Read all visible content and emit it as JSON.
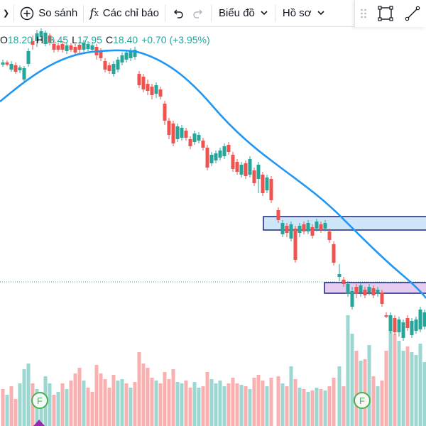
{
  "toolbar": {
    "compare_label": "So sánh",
    "indicators_label": "Các chỉ báo",
    "chart_type_label": "Biểu đồ",
    "profile_label": "Hồ sơ",
    "compare_icon": "plus-circle-icon",
    "indicators_icon": "fx-icon",
    "undo_icon": "undo-icon",
    "redo_icon": "redo-icon",
    "drag_icon": "drag-handle-icon",
    "rect_icon": "rectangle-tool-icon",
    "line_icon": "trendline-tool-icon"
  },
  "ohlc": {
    "o_key": "O",
    "o": "18.20",
    "h_key": "H",
    "h": "18.45",
    "l_key": "L",
    "l": "17.95",
    "c_key": "C",
    "c": "18.40",
    "change": "+0.70 (+3.95%)"
  },
  "markers": {
    "event_letter_1": "F",
    "event_letter_2": "F"
  },
  "colors": {
    "up": "#26a69a",
    "down": "#ef5350",
    "ma_line": "#2196f3",
    "zone_blue_fill": "#cfe6fa",
    "zone_purple_fill": "#e6cdef",
    "zone_border": "#1a237e",
    "event_marker": "#4caf50",
    "arrow_marker": "#9c27b0"
  }
}
